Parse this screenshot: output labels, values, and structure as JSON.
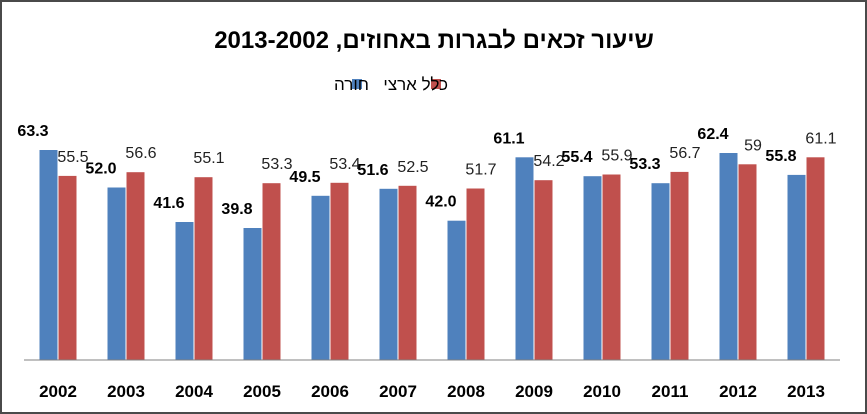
{
  "chart_data": {
    "type": "bar",
    "title": "שיעור זכאים לבגרות באחוזים, 2013-2002",
    "categories": [
      "2002",
      "2003",
      "2004",
      "2005",
      "2006",
      "2007",
      "2008",
      "2009",
      "2010",
      "2011",
      "2012",
      "2013"
    ],
    "series": [
      {
        "name": "חורה",
        "color": "#4f81bd",
        "values": [
          63.3,
          52.0,
          41.6,
          39.8,
          49.5,
          51.6,
          42.0,
          61.1,
          55.4,
          53.3,
          62.4,
          55.8
        ],
        "labels": [
          "63.3",
          "52.0",
          "41.6",
          "39.8",
          "49.5",
          "51.6",
          "42.0",
          "61.1",
          "55.4",
          "53.3",
          "62.4",
          "55.8"
        ]
      },
      {
        "name": "כלל ארצי",
        "color": "#c0504d",
        "values": [
          55.5,
          56.6,
          55.1,
          53.3,
          53.4,
          52.5,
          51.7,
          54.2,
          55.9,
          56.7,
          59,
          61.1
        ],
        "labels": [
          "55.5",
          "56.6",
          "55.1",
          "53.3",
          "53.4",
          "52.5",
          "51.7",
          "54.2",
          "55.9",
          "56.7",
          "59",
          "61.1"
        ]
      }
    ],
    "ylim": [
      0,
      65
    ],
    "legend_position": "top-center",
    "grid": false
  }
}
